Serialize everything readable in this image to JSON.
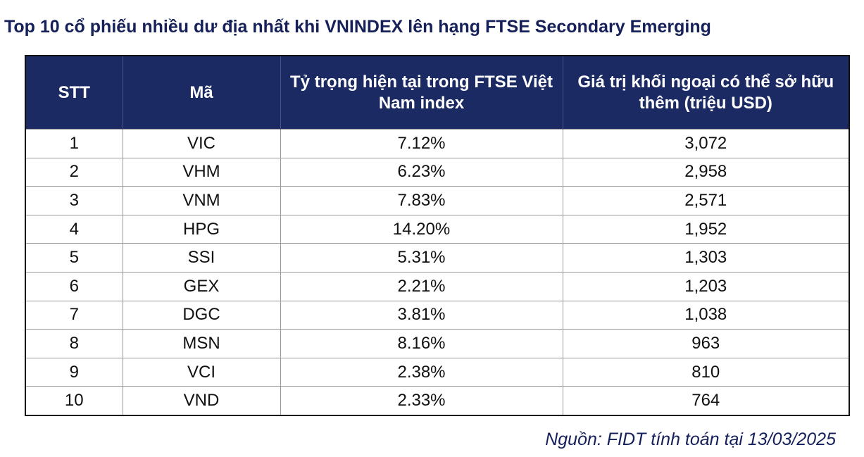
{
  "header": {
    "title": "Top 10 cổ phiếu nhiều dư địa nhất khi VNINDEX lên hạng FTSE Secondary Emerging"
  },
  "table": {
    "columns": [
      "STT",
      "Mã",
      "Tỷ trọng hiện tại trong FTSE Việt Nam index",
      "Giá trị khối ngoại có thể sở hữu thêm (triệu USD)"
    ],
    "rows": [
      [
        "1",
        "VIC",
        "7.12%",
        "3,072"
      ],
      [
        "2",
        "VHM",
        "6.23%",
        "2,958"
      ],
      [
        "3",
        "VNM",
        "7.83%",
        "2,571"
      ],
      [
        "4",
        "HPG",
        "14.20%",
        "1,952"
      ],
      [
        "5",
        "SSI",
        "5.31%",
        "1,303"
      ],
      [
        "6",
        "GEX",
        "2.21%",
        "1,203"
      ],
      [
        "7",
        "DGC",
        "3.81%",
        "1,038"
      ],
      [
        "8",
        "MSN",
        "8.16%",
        "963"
      ],
      [
        "9",
        "VCI",
        "2.38%",
        "810"
      ],
      [
        "10",
        "VND",
        "2.33%",
        "764"
      ]
    ]
  },
  "source": "Nguồn: FIDT tính toán tại 13/03/2025"
}
